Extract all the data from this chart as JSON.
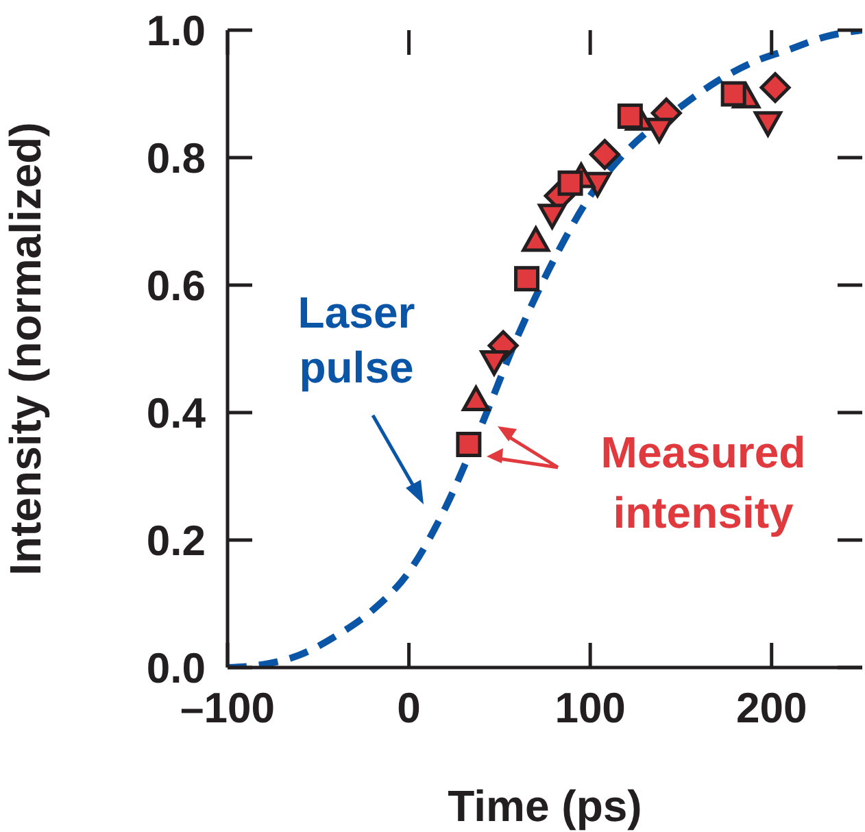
{
  "chart_data": {
    "type": "scatter",
    "xlabel": "Time (ps)",
    "ylabel": "Intensity (normalized)",
    "xlim": [
      -100,
      250
    ],
    "xticks": [
      {
        "value": -100,
        "label": "–100"
      },
      0,
      100,
      200
    ],
    "ylim": [
      0,
      1
    ],
    "yticks": [
      {
        "value": 0,
        "label": "0.0"
      },
      0.2,
      0.4,
      0.6,
      0.8,
      {
        "value": 1,
        "label": "1.0"
      }
    ],
    "series": [
      {
        "type": "line",
        "color": "#0a55a6",
        "line_style": "dashed",
        "marker": "none",
        "x": [
          -100,
          -80,
          -60,
          -40,
          -20,
          0,
          20,
          40,
          60,
          80,
          100,
          120,
          150,
          170,
          190,
          210,
          230,
          250
        ],
        "values": [
          0,
          0.005,
          0.02,
          0.05,
          0.09,
          0.15,
          0.25,
          0.38,
          0.52,
          0.64,
          0.74,
          0.81,
          0.88,
          0.92,
          0.95,
          0.97,
          0.99,
          1.0
        ]
      },
      {
        "color": "#e03a3e",
        "marker": "square",
        "x": [
          33,
          65,
          89,
          122,
          179
        ],
        "values": [
          0.35,
          0.61,
          0.76,
          0.865,
          0.9
        ]
      },
      {
        "color": "#e03a3e",
        "marker": "triangle",
        "x": [
          37,
          70,
          95,
          127,
          186
        ],
        "values": [
          0.42,
          0.67,
          0.77,
          0.86,
          0.895
        ]
      },
      {
        "color": "#e03a3e",
        "marker": "triangle-down",
        "x": [
          47,
          79,
          104,
          138,
          198
        ],
        "values": [
          0.48,
          0.71,
          0.76,
          0.845,
          0.855
        ]
      },
      {
        "color": "#e03a3e",
        "marker": "diamond",
        "x": [
          52,
          83,
          108,
          142,
          202
        ],
        "values": [
          0.505,
          0.74,
          0.805,
          0.87,
          0.91
        ]
      }
    ],
    "annotations": [
      "Laser pulse",
      "Measured intensity"
    ]
  }
}
